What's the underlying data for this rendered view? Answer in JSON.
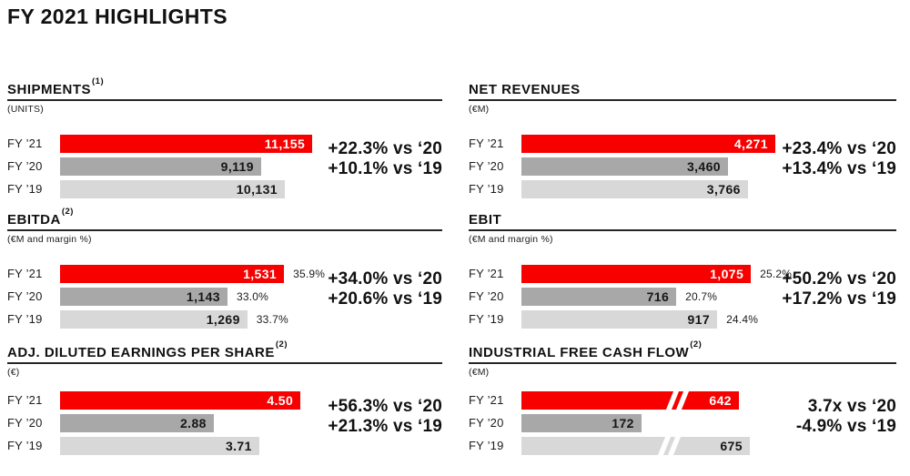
{
  "page": {
    "title": "FY 2021 HIGHLIGHTS"
  },
  "colors": {
    "fy21_red": "#f70000",
    "fy20_gray": "#a8a8a8",
    "fy19_lightgray": "#d8d8d8",
    "text": "#161616"
  },
  "chart_data": [
    {
      "type": "bar",
      "orientation": "horizontal",
      "title": "SHIPMENTS",
      "title_sup": "(1)",
      "unit_label": "(UNITS)",
      "categories": [
        "FY ’21",
        "FY ’20",
        "FY ’19"
      ],
      "values": [
        11155,
        9119,
        10131
      ],
      "value_labels": [
        "11,155",
        "9,119",
        "10,131"
      ],
      "bar_width_pct": [
        66.0,
        52.6,
        58.8
      ],
      "margin_labels": null,
      "breaks": null,
      "deltas": [
        "+22.3% vs ‘20",
        "+10.1% vs ‘19"
      ]
    },
    {
      "type": "bar",
      "orientation": "horizontal",
      "title": "NET REVENUES",
      "title_sup": "",
      "unit_label": "(€M)",
      "categories": [
        "FY ’21",
        "FY ’20",
        "FY ’19"
      ],
      "values": [
        4271,
        3460,
        3766
      ],
      "value_labels": [
        "4,271",
        "3,460",
        "3,766"
      ],
      "bar_width_pct": [
        67.7,
        55.1,
        60.4
      ],
      "margin_labels": null,
      "breaks": null,
      "deltas": [
        "+23.4% vs ‘20",
        "+13.4% vs ‘19"
      ]
    },
    {
      "type": "bar",
      "orientation": "horizontal",
      "title": "EBITDA",
      "title_sup": "(2)",
      "unit_label": "(€M and margin %)",
      "categories": [
        "FY ’21",
        "FY ’20",
        "FY ’19"
      ],
      "values": [
        1531,
        1143,
        1269
      ],
      "value_labels": [
        "1,531",
        "1,143",
        "1,269"
      ],
      "bar_width_pct": [
        58.6,
        43.8,
        49.0
      ],
      "margin_labels": [
        "35.9%",
        "33.0%",
        "33.7%"
      ],
      "breaks": null,
      "deltas": [
        "+34.0% vs ‘20",
        "+20.6% vs ‘19"
      ]
    },
    {
      "type": "bar",
      "orientation": "horizontal",
      "title": "EBIT",
      "title_sup": "",
      "unit_label": "(€M and margin %)",
      "categories": [
        "FY ’21",
        "FY ’20",
        "FY ’19"
      ],
      "values": [
        1075,
        716,
        917
      ],
      "value_labels": [
        "1,075",
        "716",
        "917"
      ],
      "bar_width_pct": [
        61.2,
        41.3,
        52.2
      ],
      "margin_labels": [
        "25.2%",
        "20.7%",
        "24.4%"
      ],
      "breaks": null,
      "deltas": [
        "+50.2% vs ‘20",
        "+17.2% vs ‘19"
      ]
    },
    {
      "type": "bar",
      "orientation": "horizontal",
      "title": "ADJ. DILUTED EARNINGS PER SHARE",
      "title_sup": "(2)",
      "unit_label": "(€)",
      "categories": [
        "FY ’21",
        "FY ’20",
        "FY ’19"
      ],
      "values": [
        4.5,
        2.88,
        3.71
      ],
      "value_labels": [
        "4.50",
        "2.88",
        "3.71"
      ],
      "bar_width_pct": [
        62.9,
        40.2,
        52.1
      ],
      "margin_labels": null,
      "breaks": null,
      "deltas": [
        "+56.3% vs ‘20",
        "+21.3% vs ‘19"
      ]
    },
    {
      "type": "bar",
      "orientation": "horizontal",
      "title": "INDUSTRIAL FREE CASH FLOW",
      "title_sup": "(2)",
      "unit_label": "(€M)",
      "categories": [
        "FY ’21",
        "FY ’20",
        "FY ’19"
      ],
      "values": [
        642,
        172,
        675
      ],
      "value_labels": [
        "642",
        "172",
        "675"
      ],
      "bar_width_pct": [
        58.0,
        32.0,
        60.9
      ],
      "margin_labels": null,
      "breaks": [
        67,
        null,
        60
      ],
      "axis_note": "FY'21 and FY'19 bars shown with axis-break marks (not to scale)",
      "deltas": [
        "3.7x vs ‘20",
        "-4.9% vs ‘19"
      ]
    }
  ]
}
